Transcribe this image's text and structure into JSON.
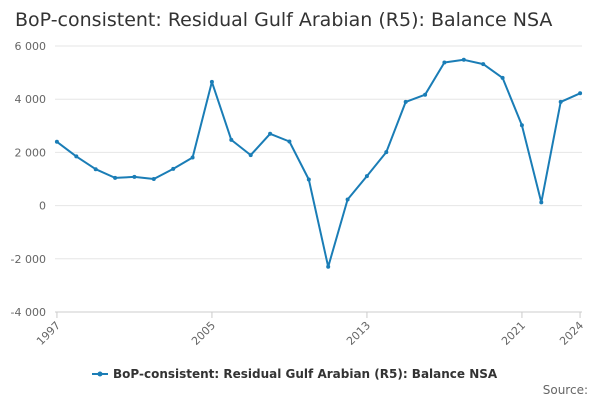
{
  "chart_data": {
    "type": "line",
    "title": "BoP-consistent: Residual Gulf Arabian (R5): Balance NSA",
    "xlabel": "",
    "ylabel": "",
    "x": [
      1997,
      1998,
      1999,
      2000,
      2001,
      2002,
      2003,
      2004,
      2005,
      2006,
      2007,
      2008,
      2009,
      2010,
      2011,
      2012,
      2013,
      2014,
      2015,
      2016,
      2017,
      2018,
      2019,
      2020,
      2021,
      2022,
      2023,
      2024
    ],
    "x_tick_labels": [
      "1997",
      "2005",
      "2013",
      "2021",
      "2024"
    ],
    "x_tick_values": [
      1997,
      2005,
      2013,
      2021,
      2024
    ],
    "ylim": [
      -4000,
      6000
    ],
    "y_tick_values": [
      -4000,
      -2000,
      0,
      2000,
      4000,
      6000
    ],
    "y_tick_labels": [
      "-4 000",
      "-2 000",
      "0",
      "2 000",
      "4 000",
      "6 000"
    ],
    "series": [
      {
        "name": "BoP-consistent: Residual Gulf Arabian (R5): Balance NSA",
        "color": "#1a7db6",
        "values": [
          2400,
          1850,
          1370,
          1040,
          1080,
          1000,
          1380,
          1810,
          4650,
          2470,
          1900,
          2700,
          2410,
          980,
          -2300,
          230,
          1110,
          2010,
          3900,
          4170,
          5380,
          5480,
          5320,
          4800,
          3020,
          120,
          3900,
          4220
        ]
      }
    ],
    "grid": true,
    "legend": "bottom",
    "source_label": "Source:"
  }
}
